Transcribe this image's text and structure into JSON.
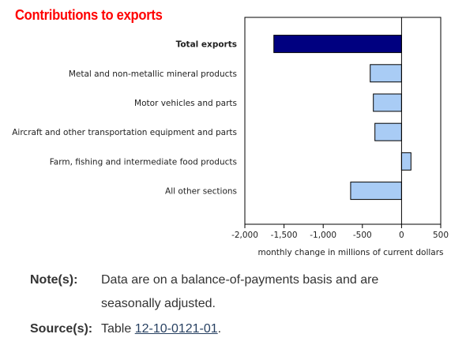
{
  "title": "Contributions to exports",
  "chart_data": {
    "type": "bar",
    "orientation": "horizontal",
    "title": "Contributions to exports",
    "xlabel": "monthly change in millions of current dollars",
    "ylabel": "",
    "xlim": [
      -2000,
      500
    ],
    "xticks": [
      -2000,
      -1500,
      -1000,
      -500,
      0,
      500
    ],
    "xtick_labels": [
      "-2,000",
      "-1,500",
      "-1,000",
      "-500",
      "0",
      "500"
    ],
    "categories": [
      "Total exports",
      "Metal and non-metallic mineral products",
      "Motor vehicles and parts",
      "Aircraft and other transportation equipment and parts",
      "Farm, fishing and intermediate food products",
      "All other sections"
    ],
    "values": [
      -1630,
      -400,
      -360,
      -340,
      120,
      -650
    ],
    "highlight_category": "Total exports",
    "colors": {
      "highlight": "#000080",
      "bar": "#a9ccf5",
      "bar_edge": "#000000"
    },
    "grid": false
  },
  "notes": {
    "note_label": "Note(s):",
    "note_text": "Data are on a balance-of-payments basis and are seasonally adjusted.",
    "source_label": "Source(s):",
    "source_prefix": "Table ",
    "source_link": "12-10-0121-01",
    "source_suffix": "."
  }
}
